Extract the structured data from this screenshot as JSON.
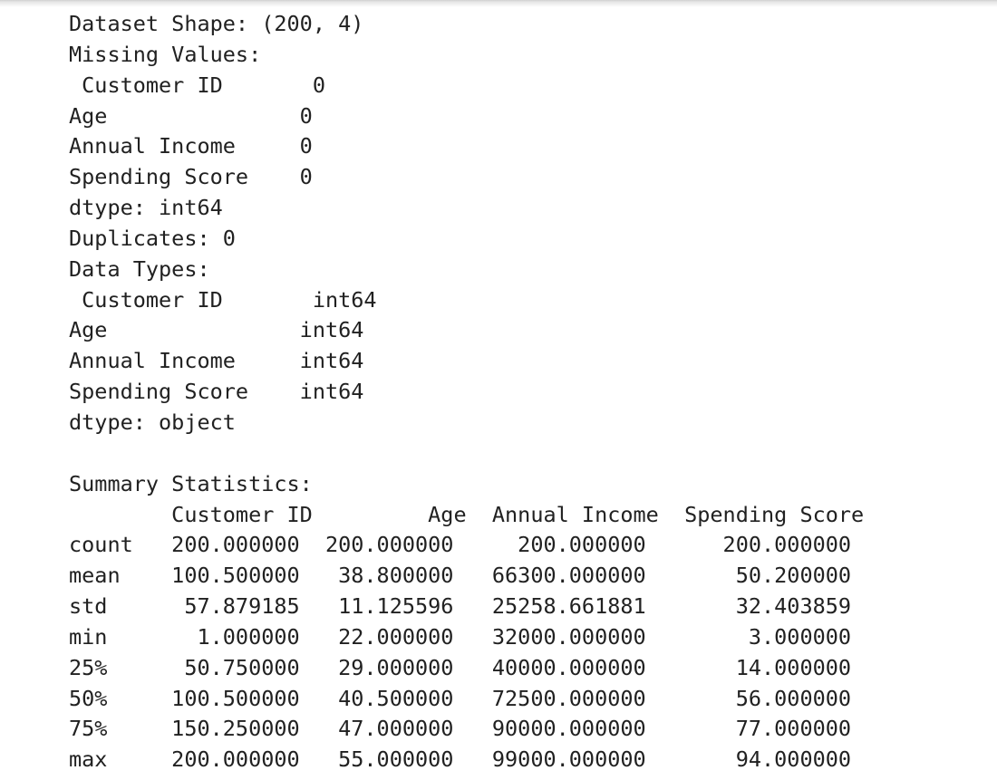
{
  "output": {
    "lines": [
      "Dataset Shape: (200, 4)",
      "Missing Values:",
      " Customer ID       0",
      "Age               0",
      "Annual Income     0",
      "Spending Score    0",
      "dtype: int64",
      "Duplicates: 0",
      "Data Types:",
      " Customer ID       int64",
      "Age               int64",
      "Annual Income     int64",
      "Spending Score    int64",
      "dtype: object",
      "",
      "Summary Statistics:",
      "        Customer ID         Age  Annual Income  Spending Score",
      "count   200.000000  200.000000     200.000000      200.000000",
      "mean    100.500000   38.800000   66300.000000       50.200000",
      "std      57.879185   11.125596   25258.661881       32.403859",
      "min       1.000000   22.000000   32000.000000        3.000000",
      "25%      50.750000   29.000000   40000.000000       14.000000",
      "50%     100.500000   40.500000   72500.000000       56.000000",
      "75%     150.250000   47.000000   90000.000000       77.000000",
      "max     200.000000   55.000000   99000.000000       94.000000"
    ]
  }
}
